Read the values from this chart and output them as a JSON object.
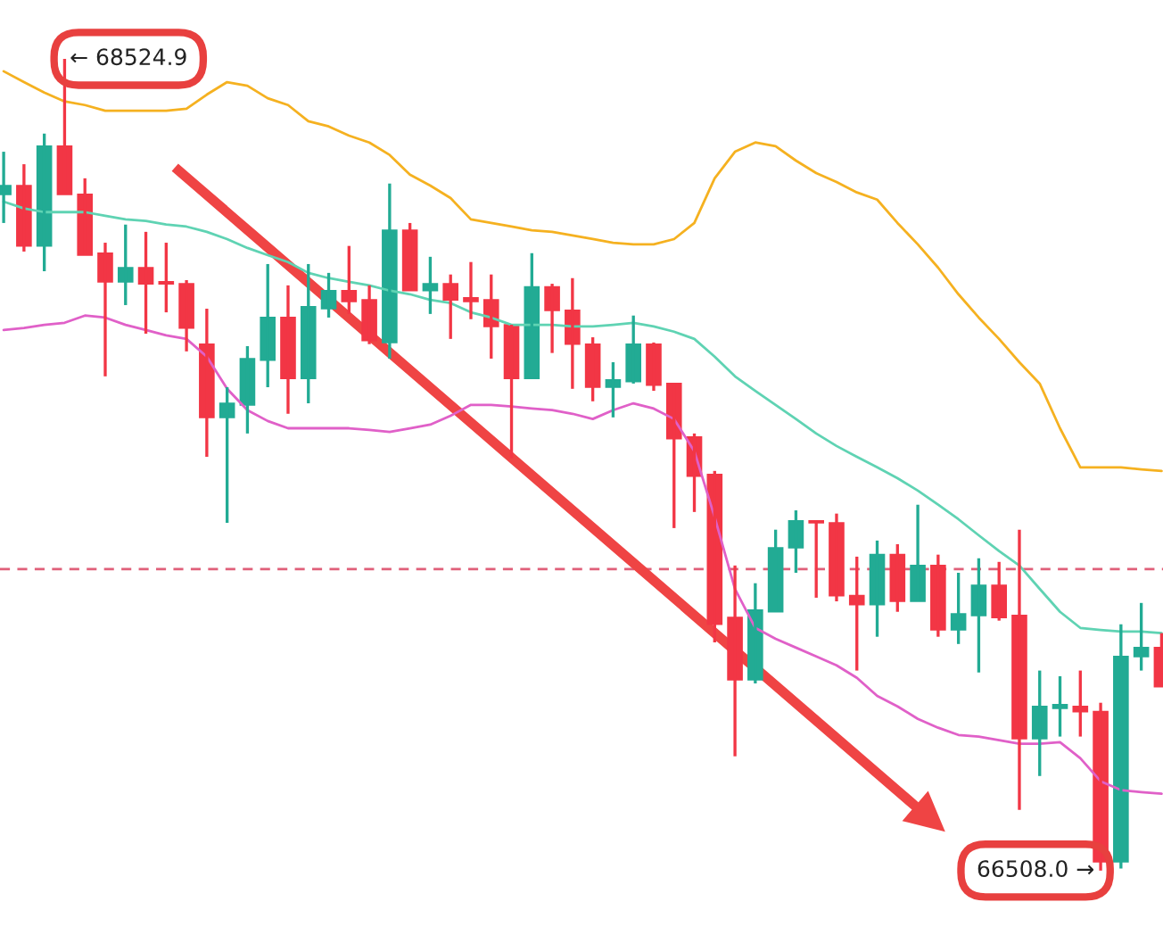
{
  "chart_data": {
    "type": "candlestick",
    "categories": [
      null,
      null,
      null,
      null,
      null,
      null,
      null,
      null,
      null,
      null,
      null,
      null,
      null,
      null,
      null,
      null,
      null,
      null,
      null,
      null,
      null,
      null,
      null,
      null,
      null,
      null,
      null,
      null,
      null,
      null,
      null,
      null,
      null,
      null,
      null,
      null,
      null,
      null,
      null,
      null,
      null,
      null,
      null,
      null,
      null,
      null,
      null,
      null,
      null,
      null,
      null,
      null,
      null,
      null,
      null,
      null,
      null,
      null
    ],
    "ohlc": [
      [
        68188,
        68294,
        68117,
        68210
      ],
      [
        68210,
        68263,
        68046,
        68060
      ],
      [
        68060,
        68339,
        67997,
        68308
      ],
      [
        68308,
        68524.9,
        68188,
        68188
      ],
      [
        68188,
        68228,
        68037,
        68037
      ],
      [
        68042,
        68068,
        67736,
        67971
      ],
      [
        67971,
        68113,
        67913,
        68006
      ],
      [
        68006,
        68095,
        67842,
        67966
      ],
      [
        67971,
        68068,
        67895,
        67966
      ],
      [
        67966,
        67975,
        67798,
        67856
      ],
      [
        67816,
        67904,
        67536,
        67634
      ],
      [
        67634,
        67709,
        67372,
        67669
      ],
      [
        67665,
        67811,
        67594,
        67780
      ],
      [
        67776,
        68015,
        67709,
        67882
      ],
      [
        67882,
        67962,
        67643,
        67731
      ],
      [
        67731,
        68015,
        67669,
        67909
      ],
      [
        67904,
        67993,
        67882,
        67949
      ],
      [
        67949,
        68060,
        67891,
        67922
      ],
      [
        67926,
        67962,
        67816,
        67825
      ],
      [
        67820,
        68215,
        67780,
        68099
      ],
      [
        68099,
        68117,
        67949,
        67949
      ],
      [
        67949,
        68033,
        67891,
        67966
      ],
      [
        67966,
        67989,
        67829,
        67926
      ],
      [
        67931,
        68020,
        67878,
        67922
      ],
      [
        67926,
        67989,
        67780,
        67860
      ],
      [
        67864,
        67864,
        67532,
        67731
      ],
      [
        67731,
        68042,
        67731,
        67958
      ],
      [
        67958,
        67966,
        67794,
        67900
      ],
      [
        67900,
        67980,
        67705,
        67816
      ],
      [
        67816,
        67833,
        67674,
        67709
      ],
      [
        67709,
        67771,
        67634,
        67727
      ],
      [
        67723,
        67887,
        67718,
        67816
      ],
      [
        67816,
        67820,
        67700,
        67714
      ],
      [
        67718,
        67718,
        67359,
        67581
      ],
      [
        67585,
        67594,
        67399,
        67488
      ],
      [
        67492,
        67501,
        67075,
        67120
      ],
      [
        67137,
        67266,
        66792,
        66982
      ],
      [
        66982,
        67222,
        66973,
        67155
      ],
      [
        67151,
        67355,
        67151,
        67310
      ],
      [
        67310,
        67403,
        67248,
        67377
      ],
      [
        67377,
        67377,
        67186,
        67372
      ],
      [
        67372,
        67395,
        67177,
        67191
      ],
      [
        67191,
        67288,
        67005,
        67169
      ],
      [
        67169,
        67328,
        67089,
        67293
      ],
      [
        67293,
        67319,
        67151,
        67177
      ],
      [
        67177,
        67417,
        67177,
        67266
      ],
      [
        67266,
        67293,
        67089,
        67106
      ],
      [
        67106,
        67248,
        67071,
        67146
      ],
      [
        67142,
        67284,
        67000,
        67217
      ],
      [
        67217,
        67275,
        67129,
        67137
      ],
      [
        67142,
        67355,
        66659,
        66836
      ],
      [
        66836,
        67005,
        66743,
        66916
      ],
      [
        66911,
        66991,
        66841,
        66920
      ],
      [
        66916,
        67005,
        66841,
        66903
      ],
      [
        66903,
        66925,
        66508.0,
        66530
      ],
      [
        66530,
        67120,
        66513,
        67040
      ],
      [
        67040,
        67173,
        67005,
        67062
      ],
      [
        67062,
        67098,
        66965,
        66965
      ]
    ],
    "colors": [
      "#22ab94",
      "#f23645",
      "#22ab94",
      "#f23645",
      "#f23645",
      "#f23645",
      "#22ab94",
      "#f23645",
      "#f23645",
      "#f23645",
      "#f23645",
      "#22ab94",
      "#22ab94",
      "#22ab94",
      "#f23645",
      "#22ab94",
      "#22ab94",
      "#f23645",
      "#f23645",
      "#22ab94",
      "#f23645",
      "#22ab94",
      "#f23645",
      "#f23645",
      "#f23645",
      "#f23645",
      "#22ab94",
      "#f23645",
      "#f23645",
      "#f23645",
      "#22ab94",
      "#22ab94",
      "#f23645",
      "#f23645",
      "#f23645",
      "#f23645",
      "#f23645",
      "#22ab94",
      "#22ab94",
      "#22ab94",
      "#f23645",
      "#f23645",
      "#f23645",
      "#22ab94",
      "#f23645",
      "#22ab94",
      "#f23645",
      "#22ab94",
      "#22ab94",
      "#f23645",
      "#f23645",
      "#22ab94",
      "#22ab94",
      "#f23645",
      "#f23645",
      "#22ab94",
      "#22ab94",
      "#f23645"
    ],
    "series": [
      {
        "type": "line",
        "color": "#f5b120",
        "values": [
          68494,
          68467,
          68441,
          68419,
          68410,
          68396,
          68396,
          68396,
          68396,
          68401,
          68436,
          68467,
          68458,
          68427,
          68410,
          68370,
          68357,
          68334,
          68317,
          68286,
          68237,
          68210,
          68179,
          68126,
          68117,
          68108,
          68099,
          68095,
          68086,
          68077,
          68068,
          68064,
          68064,
          68077,
          68117,
          68228,
          68294,
          68317,
          68308,
          68272,
          68241,
          68219,
          68193,
          68175,
          68117,
          68064,
          68006,
          67940,
          67882,
          67829,
          67771,
          67718,
          67607,
          67510,
          67510,
          67510,
          67505,
          67501
        ]
      },
      {
        "type": "line",
        "color": "#5fd3b3",
        "values": [
          68170,
          68153,
          68144,
          68144,
          68144,
          68135,
          68126,
          68122,
          68113,
          68108,
          68095,
          68077,
          68055,
          68037,
          68020,
          67993,
          67980,
          67971,
          67962,
          67949,
          67940,
          67926,
          67918,
          67895,
          67882,
          67864,
          67864,
          67864,
          67860,
          67860,
          67864,
          67869,
          67860,
          67847,
          67829,
          67785,
          67736,
          67700,
          67665,
          67630,
          67594,
          67563,
          67536,
          67510,
          67483,
          67452,
          67417,
          67381,
          67341,
          67302,
          67266,
          67208,
          67151,
          67111,
          67106,
          67102,
          67102,
          67098
        ]
      },
      {
        "type": "line",
        "color": "#e060c8",
        "values": [
          67851,
          67856,
          67864,
          67869,
          67887,
          67882,
          67864,
          67851,
          67838,
          67829,
          67785,
          67705,
          67652,
          67625,
          67607,
          67607,
          67607,
          67607,
          67603,
          67598,
          67607,
          67616,
          67638,
          67665,
          67665,
          67661,
          67656,
          67652,
          67643,
          67630,
          67652,
          67669,
          67656,
          67630,
          67550,
          67386,
          67208,
          67111,
          67084,
          67062,
          67040,
          67018,
          66987,
          66942,
          66916,
          66885,
          66863,
          66845,
          66841,
          66832,
          66823,
          66823,
          66827,
          66787,
          66730,
          66708,
          66703,
          66699
        ]
      }
    ],
    "ref_lines": [
      {
        "axis": "y",
        "value": 67257,
        "color": "#e0607a",
        "line_style": "dashed"
      }
    ],
    "annotations": [
      "← 68524.9",
      "66508.0 →"
    ],
    "ylim": [
      66348,
      68671
    ]
  }
}
